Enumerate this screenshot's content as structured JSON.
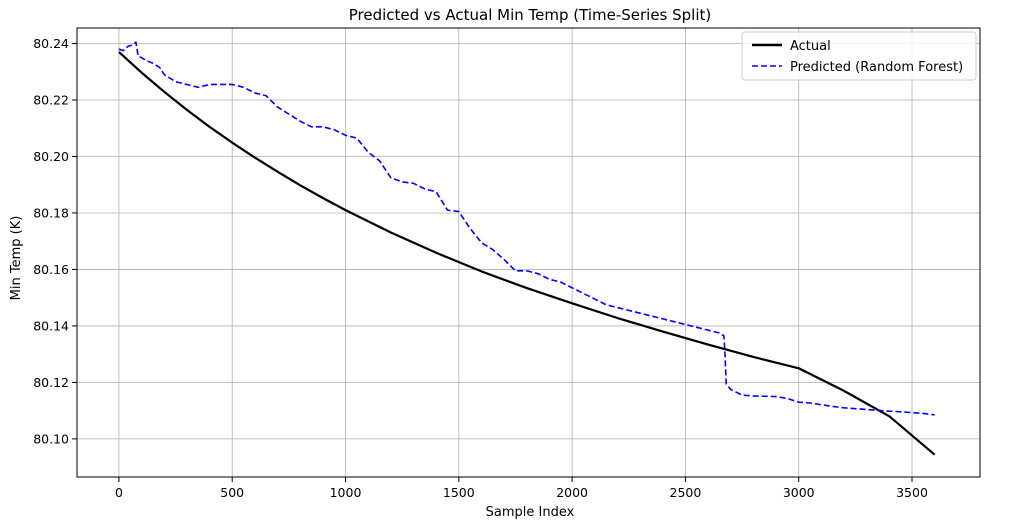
{
  "chart_data": {
    "type": "line",
    "title": "Predicted vs Actual Min Temp (Time-Series Split)",
    "xlabel": "Sample Index",
    "ylabel": "Min Temp (K)",
    "xlim": [
      -185,
      3800
    ],
    "ylim": [
      80.0865,
      80.2455
    ],
    "x_ticks": [
      0,
      500,
      1000,
      1500,
      2000,
      2500,
      3000,
      3500
    ],
    "x_tick_labels": [
      "0",
      "500",
      "1000",
      "1500",
      "2000",
      "2500",
      "3000",
      "3500"
    ],
    "y_ticks": [
      80.1,
      80.12,
      80.14,
      80.16,
      80.18,
      80.2,
      80.22,
      80.24
    ],
    "y_tick_labels": [
      "80.10",
      "80.12",
      "80.14",
      "80.16",
      "80.18",
      "80.20",
      "80.22",
      "80.24"
    ],
    "grid": true,
    "legend_position": "top-right",
    "series": [
      {
        "name": "Actual",
        "color": "#000000",
        "style": "solid",
        "x": [
          0,
          100,
          200,
          300,
          400,
          500,
          600,
          700,
          800,
          900,
          1000,
          1200,
          1400,
          1600,
          1800,
          2000,
          2200,
          2400,
          2600,
          2800,
          3000,
          3200,
          3400,
          3600
        ],
        "y": [
          80.237,
          80.2297,
          80.2229,
          80.2165,
          80.2105,
          80.2049,
          80.1996,
          80.1946,
          80.1898,
          80.1853,
          80.181,
          80.1731,
          80.1659,
          80.1593,
          80.1534,
          80.148,
          80.1428,
          80.138,
          80.1334,
          80.129,
          80.125,
          80.117,
          80.108,
          80.0944
        ]
      },
      {
        "name": "Predicted (Random Forest)",
        "color": "#0000ff",
        "style": "dashed",
        "x": [
          0,
          20,
          40,
          60,
          75,
          85,
          100,
          120,
          150,
          180,
          200,
          250,
          300,
          350,
          400,
          450,
          500,
          550,
          600,
          650,
          700,
          750,
          800,
          850,
          900,
          950,
          1000,
          1050,
          1100,
          1150,
          1200,
          1250,
          1300,
          1350,
          1400,
          1450,
          1500,
          1550,
          1600,
          1650,
          1700,
          1750,
          1800,
          1850,
          1900,
          1950,
          2000,
          2050,
          2100,
          2150,
          2200,
          2250,
          2300,
          2350,
          2400,
          2450,
          2500,
          2550,
          2600,
          2650,
          2670,
          2675,
          2680,
          2700,
          2750,
          2800,
          2850,
          2900,
          2950,
          3000,
          3050,
          3100,
          3150,
          3200,
          3250,
          3300,
          3350,
          3400,
          3450,
          3500,
          3550,
          3600
        ],
        "y": [
          80.238,
          80.2375,
          80.239,
          80.2395,
          80.2405,
          80.2355,
          80.235,
          80.234,
          80.233,
          80.2315,
          80.229,
          80.2265,
          80.2255,
          80.2245,
          80.2255,
          80.2255,
          80.2255,
          80.2245,
          80.2225,
          80.2215,
          80.2175,
          80.215,
          80.2125,
          80.2105,
          80.2105,
          80.2095,
          80.2075,
          80.2065,
          80.2015,
          80.1985,
          80.1925,
          80.191,
          80.1905,
          80.1885,
          80.1875,
          80.181,
          80.1805,
          80.1745,
          80.1695,
          80.167,
          80.1635,
          80.1595,
          80.1595,
          80.1585,
          80.1565,
          80.1555,
          80.1535,
          80.1515,
          80.1495,
          80.1475,
          80.1465,
          80.1455,
          80.1445,
          80.1435,
          80.1425,
          80.1415,
          80.1405,
          80.1395,
          80.1385,
          80.1375,
          80.1365,
          80.1295,
          80.1195,
          80.1175,
          80.1155,
          80.1152,
          80.1151,
          80.115,
          80.1143,
          80.113,
          80.1127,
          80.1121,
          80.1115,
          80.111,
          80.1107,
          80.1104,
          80.1101,
          80.1098,
          80.1096,
          80.1093,
          80.109,
          80.1085
        ]
      }
    ]
  }
}
